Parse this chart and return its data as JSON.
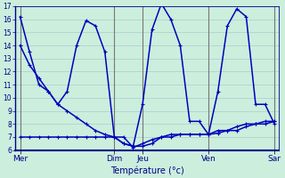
{
  "xlabel": "Température (°c)",
  "background_color": "#cceedd",
  "grid_color": "#aacccc",
  "line_color": "#0000bb",
  "sep_color": "#888888",
  "ylim": [
    6,
    17
  ],
  "yticks": [
    6,
    7,
    8,
    9,
    10,
    11,
    12,
    13,
    14,
    15,
    16,
    17
  ],
  "day_labels": [
    "Mer",
    "Dim",
    "Jeu",
    "Ven",
    "Sar"
  ],
  "day_positions": [
    0,
    10,
    13,
    20,
    27
  ],
  "num_points": 28,
  "line1": [
    16.2,
    13.5,
    11.0,
    10.5,
    9.5,
    10.5,
    14.0,
    15.9,
    15.5,
    13.5,
    7.0,
    6.5,
    6.3,
    9.5,
    15.2,
    17.2,
    16.0,
    14.0,
    8.2,
    8.2,
    7.2,
    10.5,
    15.5,
    16.8,
    16.2,
    9.5,
    9.5,
    8.0
  ],
  "line2": [
    7.0,
    7.0,
    7.0,
    7.0,
    7.0,
    7.0,
    7.0,
    7.0,
    7.0,
    7.0,
    7.0,
    6.5,
    6.3,
    6.3,
    6.5,
    7.0,
    7.0,
    7.2,
    7.2,
    7.2,
    7.2,
    7.3,
    7.5,
    7.5,
    7.8,
    8.0,
    8.0,
    8.2
  ],
  "line3": [
    14.0,
    12.5,
    11.5,
    10.5,
    9.5,
    9.0,
    8.5,
    8.0,
    7.5,
    7.2,
    7.0,
    7.0,
    6.2,
    6.5,
    6.8,
    7.0,
    7.2,
    7.2,
    7.2,
    7.2,
    7.2,
    7.5,
    7.5,
    7.8,
    8.0,
    8.0,
    8.2,
    8.2
  ]
}
